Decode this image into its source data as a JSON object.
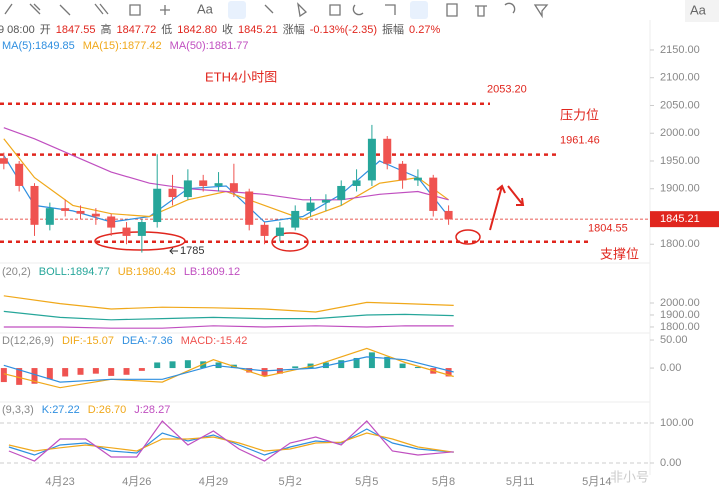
{
  "toolbar": {
    "text_tool": "Aa",
    "font_button": "Aa"
  },
  "quote": [
    {
      "text": "9 08:00",
      "color": "#555555"
    },
    {
      "text": "开",
      "color": "#555555"
    },
    {
      "text": "1847.55",
      "color": "#e0261e"
    },
    {
      "text": "高",
      "color": "#555555"
    },
    {
      "text": "1847.72",
      "color": "#e0261e"
    },
    {
      "text": "低",
      "color": "#555555"
    },
    {
      "text": "1842.80",
      "color": "#e0261e"
    },
    {
      "text": "收",
      "color": "#555555"
    },
    {
      "text": "1845.21",
      "color": "#e0261e"
    },
    {
      "text": "涨幅",
      "color": "#555555"
    },
    {
      "text": "-0.13%(-2.35)",
      "color": "#e0261e"
    },
    {
      "text": "振幅",
      "color": "#555555"
    },
    {
      "text": "0.27%",
      "color": "#e0261e"
    }
  ],
  "watermark": "非小号",
  "chart_data": [
    {
      "type": "candlestick",
      "title": "ETH4小时图",
      "xlim": [
        20.65,
        46.08
      ],
      "xticks": [
        {
          "value": 23,
          "label": "4月23"
        },
        {
          "value": 26,
          "label": "4月26"
        },
        {
          "value": 29,
          "label": "4月29"
        },
        {
          "value": 32,
          "label": "5月2"
        },
        {
          "value": 35,
          "label": "5月5"
        },
        {
          "value": 38,
          "label": "5月8"
        },
        {
          "value": 41,
          "label": "5月11"
        },
        {
          "value": 44,
          "label": "5月14"
        }
      ],
      "ylim": [
        1768,
        2204
      ],
      "yticks": [
        {
          "value": 1800,
          "label": "1800.00"
        },
        {
          "value": 1850,
          "label": "1850.00"
        },
        {
          "value": 1900,
          "label": "1900.00"
        },
        {
          "value": 1950,
          "label": "1950.00"
        },
        {
          "value": 2000,
          "label": "2000.00"
        },
        {
          "value": 2050,
          "label": "2050.00"
        },
        {
          "value": 2100,
          "label": "2100.00"
        },
        {
          "value": 2150,
          "label": "2150.00"
        }
      ],
      "up_color": "#26a69a",
      "down_color": "#ef5350",
      "candles": [
        {
          "x": 20.8,
          "open": 1955,
          "high": 1965,
          "low": 1935,
          "close": 1945
        },
        {
          "x": 21.4,
          "open": 1945,
          "high": 1950,
          "low": 1895,
          "close": 1905
        },
        {
          "x": 22.0,
          "open": 1905,
          "high": 1910,
          "low": 1815,
          "close": 1835
        },
        {
          "x": 22.6,
          "open": 1835,
          "high": 1875,
          "low": 1825,
          "close": 1865
        },
        {
          "x": 23.2,
          "open": 1865,
          "high": 1880,
          "low": 1850,
          "close": 1860
        },
        {
          "x": 23.8,
          "open": 1860,
          "high": 1870,
          "low": 1845,
          "close": 1855
        },
        {
          "x": 24.4,
          "open": 1855,
          "high": 1865,
          "low": 1835,
          "close": 1850
        },
        {
          "x": 25.0,
          "open": 1850,
          "high": 1855,
          "low": 1815,
          "close": 1830
        },
        {
          "x": 25.6,
          "open": 1830,
          "high": 1840,
          "low": 1800,
          "close": 1815
        },
        {
          "x": 26.2,
          "open": 1815,
          "high": 1845,
          "low": 1785,
          "close": 1840
        },
        {
          "x": 26.8,
          "open": 1840,
          "high": 1962,
          "low": 1830,
          "close": 1900
        },
        {
          "x": 27.4,
          "open": 1900,
          "high": 1925,
          "low": 1870,
          "close": 1885
        },
        {
          "x": 28.0,
          "open": 1885,
          "high": 1935,
          "low": 1880,
          "close": 1915
        },
        {
          "x": 28.6,
          "open": 1915,
          "high": 1925,
          "low": 1895,
          "close": 1905
        },
        {
          "x": 29.2,
          "open": 1905,
          "high": 1930,
          "low": 1895,
          "close": 1910
        },
        {
          "x": 29.8,
          "open": 1910,
          "high": 1945,
          "low": 1885,
          "close": 1895
        },
        {
          "x": 30.4,
          "open": 1895,
          "high": 1900,
          "low": 1825,
          "close": 1835
        },
        {
          "x": 31.0,
          "open": 1835,
          "high": 1840,
          "low": 1800,
          "close": 1815
        },
        {
          "x": 31.6,
          "open": 1815,
          "high": 1840,
          "low": 1805,
          "close": 1830
        },
        {
          "x": 32.2,
          "open": 1830,
          "high": 1870,
          "low": 1825,
          "close": 1860
        },
        {
          "x": 32.8,
          "open": 1860,
          "high": 1885,
          "low": 1850,
          "close": 1875
        },
        {
          "x": 33.4,
          "open": 1875,
          "high": 1890,
          "low": 1860,
          "close": 1880
        },
        {
          "x": 34.0,
          "open": 1880,
          "high": 1915,
          "low": 1870,
          "close": 1905
        },
        {
          "x": 34.6,
          "open": 1905,
          "high": 1935,
          "low": 1895,
          "close": 1915
        },
        {
          "x": 35.2,
          "open": 1915,
          "high": 2015,
          "low": 1905,
          "close": 1990
        },
        {
          "x": 35.8,
          "open": 1990,
          "high": 1995,
          "low": 1935,
          "close": 1945
        },
        {
          "x": 36.4,
          "open": 1945,
          "high": 1950,
          "low": 1900,
          "close": 1915
        },
        {
          "x": 37.0,
          "open": 1915,
          "high": 1935,
          "low": 1905,
          "close": 1920
        },
        {
          "x": 37.6,
          "open": 1920,
          "high": 1925,
          "low": 1850,
          "close": 1860
        },
        {
          "x": 38.2,
          "open": 1860,
          "high": 1870,
          "low": 1835,
          "close": 1845
        }
      ],
      "series": [
        {
          "name": "MA(5):1849.85",
          "color": "#2f8fe0",
          "x": [
            20.8,
            22,
            23.5,
            25,
            26.5,
            28,
            29.5,
            31,
            32.5,
            34,
            35.5,
            37,
            38.2
          ],
          "values": [
            1960,
            1870,
            1860,
            1840,
            1850,
            1900,
            1905,
            1840,
            1850,
            1890,
            1950,
            1920,
            1850
          ]
        },
        {
          "name": "MA(15):1877.42",
          "color": "#f0a81a",
          "x": [
            20.8,
            22,
            23.5,
            25,
            26.5,
            28,
            29.5,
            31,
            32.5,
            34,
            35.5,
            37,
            38.2
          ],
          "values": [
            1990,
            1920,
            1870,
            1855,
            1850,
            1880,
            1895,
            1870,
            1845,
            1870,
            1910,
            1920,
            1880
          ]
        },
        {
          "name": "MA(50):1881.77",
          "color": "#c04fc0",
          "x": [
            20.8,
            22,
            23.5,
            25,
            26.5,
            28,
            29.5,
            31,
            32.5,
            34,
            35.5,
            37,
            38.2
          ],
          "values": [
            2010,
            1990,
            1960,
            1930,
            1910,
            1900,
            1895,
            1890,
            1880,
            1880,
            1890,
            1895,
            1880
          ]
        }
      ],
      "levels": [
        {
          "value": 2053.2,
          "label": "2053.20"
        },
        {
          "value": 1961.46,
          "label": "1961.46"
        },
        {
          "value": 1804.55,
          "label": "1804.55"
        }
      ],
      "level_color": "#e0261e",
      "current_price": {
        "value": 1845.21,
        "label": "1845.21"
      },
      "annotations": {
        "resistance": "压力位",
        "support": "支撑位",
        "low": "1785"
      }
    },
    {
      "type": "line",
      "params": "(20,2)",
      "xlim": [
        20.65,
        46.08
      ],
      "ylim": [
        1758,
        2317
      ],
      "yticks": [
        {
          "value": 1800,
          "label": "1800.00"
        },
        {
          "value": 1900,
          "label": "1900.00"
        },
        {
          "value": 2000,
          "label": "2000.00"
        }
      ],
      "series": [
        {
          "name": "BOLL:1894.77",
          "color": "#26a69a",
          "x": [
            20.8,
            23,
            25,
            27,
            29,
            31,
            33,
            35,
            36.5,
            38.4
          ],
          "values": [
            1930,
            1880,
            1860,
            1870,
            1880,
            1870,
            1870,
            1900,
            1905,
            1895
          ]
        },
        {
          "name": "UB:1980.43",
          "color": "#f0a81a",
          "x": [
            20.8,
            23,
            25,
            27,
            29,
            31,
            33,
            35,
            36.5,
            38.4
          ],
          "values": [
            2060,
            1995,
            1950,
            1965,
            1960,
            1950,
            1925,
            2005,
            1995,
            1980
          ]
        },
        {
          "name": "LB:1809.12",
          "color": "#c04fc0",
          "x": [
            20.8,
            23,
            25,
            27,
            29,
            31,
            33,
            35,
            36.5,
            38.4
          ],
          "values": [
            1800,
            1800,
            1790,
            1790,
            1810,
            1800,
            1810,
            1800,
            1810,
            1809
          ]
        }
      ]
    },
    {
      "type": "macd",
      "params": "D(12,26,9)",
      "xlim": [
        20.65,
        46.08
      ],
      "ylim": [
        -57,
        59
      ],
      "yticks": [
        {
          "value": 0,
          "label": "0.00"
        },
        {
          "value": 50,
          "label": "50.00"
        }
      ],
      "histogram": {
        "name": "MACD:-15.42",
        "up_color": "#26a69a",
        "down_color": "#ef5350",
        "x": [
          20.8,
          21.4,
          22.0,
          22.6,
          23.2,
          23.8,
          24.4,
          25.0,
          25.6,
          26.2,
          26.8,
          27.4,
          28.0,
          28.6,
          29.2,
          29.8,
          30.4,
          31.0,
          31.6,
          32.2,
          32.8,
          33.4,
          34.0,
          34.6,
          35.2,
          35.8,
          36.4,
          37.0,
          37.6,
          38.2
        ],
        "values": [
          -25,
          -30,
          -28,
          -20,
          -15,
          -12,
          -10,
          -14,
          -12,
          -5,
          10,
          12,
          14,
          12,
          10,
          6,
          -8,
          -14,
          -10,
          3,
          8,
          10,
          14,
          18,
          28,
          20,
          8,
          2,
          -10,
          -15
        ]
      },
      "series": [
        {
          "name": "DIF:-15.07",
          "color": "#f0a81a",
          "x": [
            20.8,
            23,
            25,
            27,
            29,
            31,
            33,
            35,
            36.5,
            38.4
          ],
          "values": [
            -10,
            -35,
            -20,
            -25,
            15,
            -15,
            5,
            35,
            10,
            -15
          ]
        },
        {
          "name": "DEA:-7.36",
          "color": "#2f8fe0",
          "x": [
            20.8,
            23,
            25,
            27,
            29,
            31,
            33,
            35,
            36.5,
            38.4
          ],
          "values": [
            5,
            -25,
            -20,
            -20,
            5,
            -5,
            0,
            20,
            15,
            -7
          ]
        }
      ]
    },
    {
      "type": "line",
      "params": "(9,3,3)",
      "xlim": [
        20.65,
        46.08
      ],
      "ylim": [
        -30,
        145
      ],
      "yticks": [
        {
          "value": 0,
          "label": "0.00"
        },
        {
          "value": 100,
          "label": "100.00"
        }
      ],
      "series": [
        {
          "name": "K:27.22",
          "color": "#2f8fe0",
          "x": [
            21,
            22,
            23,
            24,
            25,
            26,
            27,
            28,
            29,
            30,
            31,
            32,
            33,
            34,
            35,
            36,
            37,
            38.4
          ],
          "values": [
            40,
            20,
            45,
            50,
            30,
            25,
            75,
            55,
            70,
            45,
            20,
            40,
            55,
            50,
            85,
            50,
            35,
            27
          ]
        },
        {
          "name": "D:26.70",
          "color": "#f0a81a",
          "x": [
            21,
            22,
            23,
            24,
            25,
            26,
            27,
            28,
            29,
            30,
            31,
            32,
            33,
            34,
            35,
            36,
            37,
            38.4
          ],
          "values": [
            45,
            30,
            38,
            45,
            38,
            30,
            60,
            60,
            65,
            50,
            30,
            35,
            50,
            52,
            75,
            60,
            40,
            27
          ]
        },
        {
          "name": "J:28.27",
          "color": "#c04fc0",
          "x": [
            21,
            22,
            23,
            24,
            25,
            26,
            27,
            28,
            29,
            30,
            31,
            32,
            33,
            34,
            35,
            36,
            37,
            38.4
          ],
          "values": [
            30,
            5,
            60,
            60,
            15,
            15,
            105,
            45,
            80,
            35,
            5,
            50,
            65,
            45,
            105,
            30,
            20,
            28
          ]
        }
      ]
    }
  ]
}
